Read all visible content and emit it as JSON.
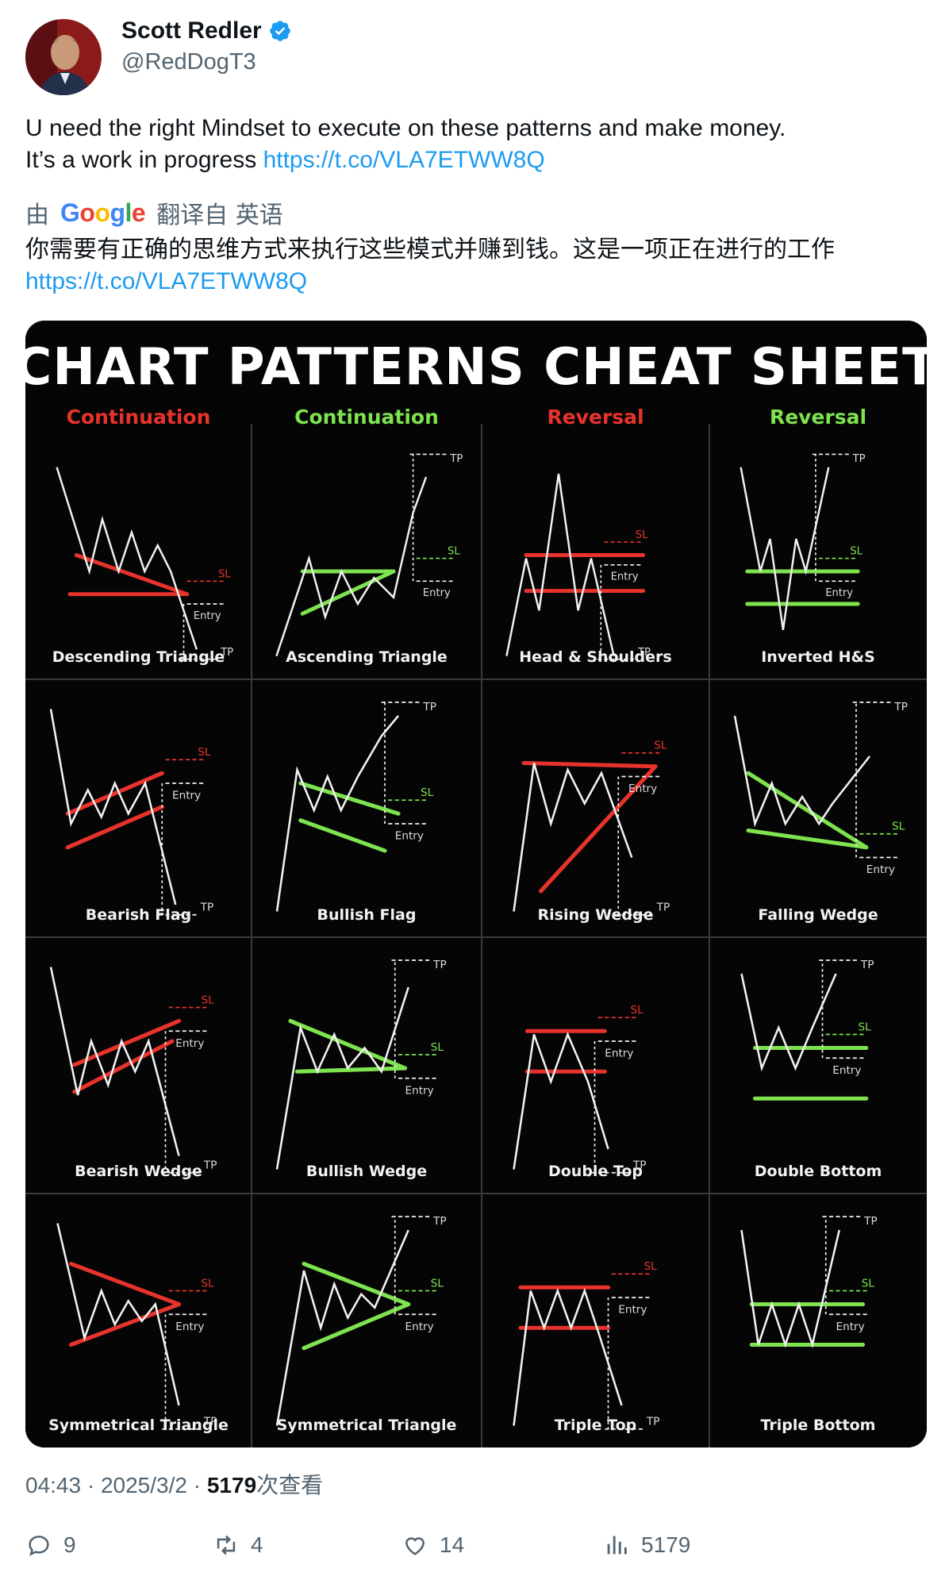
{
  "author": {
    "name": "Scott Redler",
    "handle": "@RedDogT3",
    "verified": true
  },
  "tweet": {
    "text_line1": "U need the right Mindset to execute on these patterns and make money.",
    "text_line2": "It’s a work in progress ",
    "link": "https://t.co/VLA7ETWW8Q"
  },
  "translation": {
    "prefix": "由",
    "provider": "Google",
    "suffix": "翻译自 英语",
    "text": "你需要有正确的思维方式来执行这些模式并赚到钱。这是一项正在进行的工作",
    "link": "https://t.co/VLA7ETWW8Q"
  },
  "image": {
    "title": "CHART PATTERNS CHEAT SHEET",
    "columns": [
      {
        "label": "Continuation",
        "color": "#e8332d"
      },
      {
        "label": "Continuation",
        "color": "#7ee34f"
      },
      {
        "label": "Reversal",
        "color": "#e8332d"
      },
      {
        "label": "Reversal",
        "color": "#7ee34f"
      }
    ],
    "patterns": [
      "Descending Triangle",
      "Ascending Triangle",
      "Head & Shoulders",
      "Inverted H&S",
      "Bearish Flag",
      "Bullish Flag",
      "Rising Wedge",
      "Falling Wedge",
      "Bearish Wedge",
      "Bullish Wedge",
      "Double Top",
      "Double Bottom",
      "Symmetrical Triangle",
      "Symmetrical Triangle",
      "Triple Top",
      "Triple Bottom"
    ],
    "marker_labels": {
      "tp": "TP",
      "sl": "SL",
      "entry": "Entry"
    }
  },
  "meta": {
    "time": "04:43",
    "date": "2025/3/2",
    "views": "5179",
    "views_suffix": "次查看"
  },
  "actions": {
    "replies": "9",
    "reposts": "4",
    "likes": "14",
    "views": "5179"
  },
  "colors": {
    "link": "#1d9bf0",
    "muted": "#536471",
    "verified": "#1d9bf0",
    "bear": "#e8332d",
    "bull": "#7ee34f"
  }
}
